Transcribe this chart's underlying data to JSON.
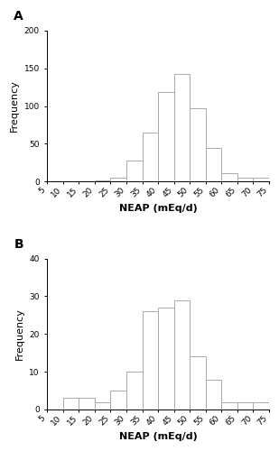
{
  "panel_A": {
    "label": "A",
    "bin_edges": [
      5,
      10,
      15,
      20,
      25,
      30,
      35,
      40,
      45,
      50,
      55,
      60,
      65,
      70,
      75
    ],
    "frequencies": [
      0,
      0,
      0,
      2,
      5,
      28,
      65,
      118,
      143,
      97,
      45,
      11,
      5,
      5
    ],
    "ylim": [
      0,
      200
    ],
    "yticks": [
      0,
      50,
      100,
      150,
      200
    ],
    "ylabel": "Frequency",
    "xlabel": "NEAP (mEq/d)",
    "xtick_positions": [
      5,
      10,
      15,
      20,
      25,
      30,
      35,
      40,
      45,
      50,
      55,
      60,
      65,
      70,
      75
    ],
    "xtick_labels": [
      "5",
      "10",
      "15",
      "20",
      "25",
      "30",
      "35",
      "40",
      "45",
      "50",
      "55",
      "60",
      "65",
      "70",
      "75"
    ]
  },
  "panel_B": {
    "label": "B",
    "bin_edges": [
      5,
      10,
      15,
      20,
      25,
      30,
      35,
      40,
      45,
      50,
      55,
      60,
      65,
      70,
      75
    ],
    "frequencies": [
      0,
      3,
      3,
      2,
      5,
      10,
      26,
      27,
      29,
      14,
      8,
      2,
      2,
      2
    ],
    "ylim": [
      0,
      40
    ],
    "yticks": [
      0,
      10,
      20,
      30,
      40
    ],
    "ylabel": "Frequency",
    "xlabel": "NEAP (mEq/d)",
    "xtick_positions": [
      5,
      10,
      15,
      20,
      25,
      30,
      35,
      40,
      45,
      50,
      55,
      60,
      65,
      70,
      75
    ],
    "xtick_labels": [
      "5",
      "10",
      "15",
      "20",
      "25",
      "30",
      "35",
      "40",
      "45",
      "50",
      "55",
      "60",
      "65",
      "70",
      "75"
    ]
  },
  "bar_color": "white",
  "bar_edgecolor": "#aaaaaa",
  "background_color": "white",
  "axis_label_fontsize": 8,
  "tick_fontsize": 6.5,
  "panel_label_fontsize": 10,
  "ylabel_fontsize": 8
}
